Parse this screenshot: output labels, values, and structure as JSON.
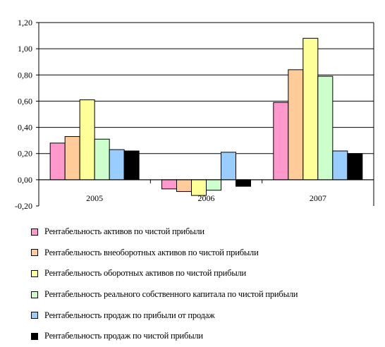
{
  "chart_data": {
    "type": "bar",
    "categories": [
      "2005",
      "2006",
      "2007"
    ],
    "ylim": [
      -0.2,
      1.2
    ],
    "ytick_labels": [
      "-0,20",
      "0,00",
      "0,20",
      "0,40",
      "0,60",
      "0,80",
      "1,00",
      "1,20"
    ],
    "grid": true,
    "legend_position": "bottom",
    "series": [
      {
        "name": "Рентабельность активов по чистой прибыли",
        "color": "#ff99cc",
        "values": [
          0.28,
          -0.07,
          0.59
        ]
      },
      {
        "name": "Рентабельность внеоборотных активов по чистой прибыли",
        "color": "#ffcc99",
        "values": [
          0.33,
          -0.09,
          0.84
        ]
      },
      {
        "name": "Рентабельность оборотных активов по чистой прибыли",
        "color": "#ffff99",
        "values": [
          0.61,
          -0.12,
          1.08
        ]
      },
      {
        "name": "Рентабельность реального собственного капитала по чистой прибыли",
        "color": "#ccffcc",
        "values": [
          0.31,
          -0.08,
          0.79
        ]
      },
      {
        "name": "Рентабельность продаж по прибыли от продаж",
        "color": "#99ccff",
        "values": [
          0.23,
          0.21,
          0.22
        ]
      },
      {
        "name": "Рентабельность продаж по чистой прибыли",
        "color": "#000000",
        "values": [
          0.22,
          -0.05,
          0.2
        ]
      }
    ]
  }
}
